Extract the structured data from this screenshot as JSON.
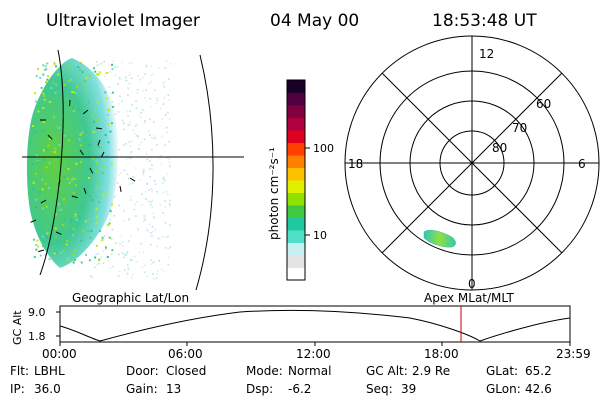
{
  "header": {
    "title": "Ultraviolet Imager",
    "date": "04 May 00",
    "time": "18:53:48 UT"
  },
  "left_panel": {
    "caption": "Geographic Lat/Lon"
  },
  "right_panel": {
    "caption": "Apex MLat/MLT",
    "mlt_labels": {
      "top": "12",
      "right": "6",
      "bottom": "0",
      "left": "18"
    },
    "lat_labels": [
      "60",
      "70",
      "80"
    ]
  },
  "colorbar": {
    "unit_label": "photon cm⁻²s⁻¹",
    "tick_labels": [
      "100",
      "10"
    ],
    "colors": [
      "#ffffff",
      "#e4e4e4",
      "#c8f0f0",
      "#50e0c8",
      "#20c8a0",
      "#40c840",
      "#90e000",
      "#e0f000",
      "#ffc000",
      "#ff8000",
      "#ff4000",
      "#e00020",
      "#b00040",
      "#800040",
      "#500040",
      "#1a0028"
    ]
  },
  "altitude_plot": {
    "ylabel": "GC Alt",
    "y_ticks": [
      "9.0",
      "1.8"
    ],
    "x_ticks": [
      "00:00",
      "06:00",
      "12:00",
      "18:00",
      "23:59"
    ]
  },
  "footer": {
    "row1": [
      {
        "label": "Flt:",
        "value": "LBHL"
      },
      {
        "label": "Door:",
        "value": "Closed"
      },
      {
        "label": "Mode:",
        "value": "Normal"
      },
      {
        "label": "GC Alt:",
        "value": "2.9 Re"
      },
      {
        "label": "GLat:",
        "value": "65.2"
      }
    ],
    "row2": [
      {
        "label": "IP:",
        "value": "36.0"
      },
      {
        "label": "Gain:",
        "value": "13"
      },
      {
        "label": "Dsp:",
        "value": "-6.2"
      },
      {
        "label": "Seq:",
        "value": "39"
      },
      {
        "label": "GLon:",
        "value": "42.6"
      }
    ]
  }
}
